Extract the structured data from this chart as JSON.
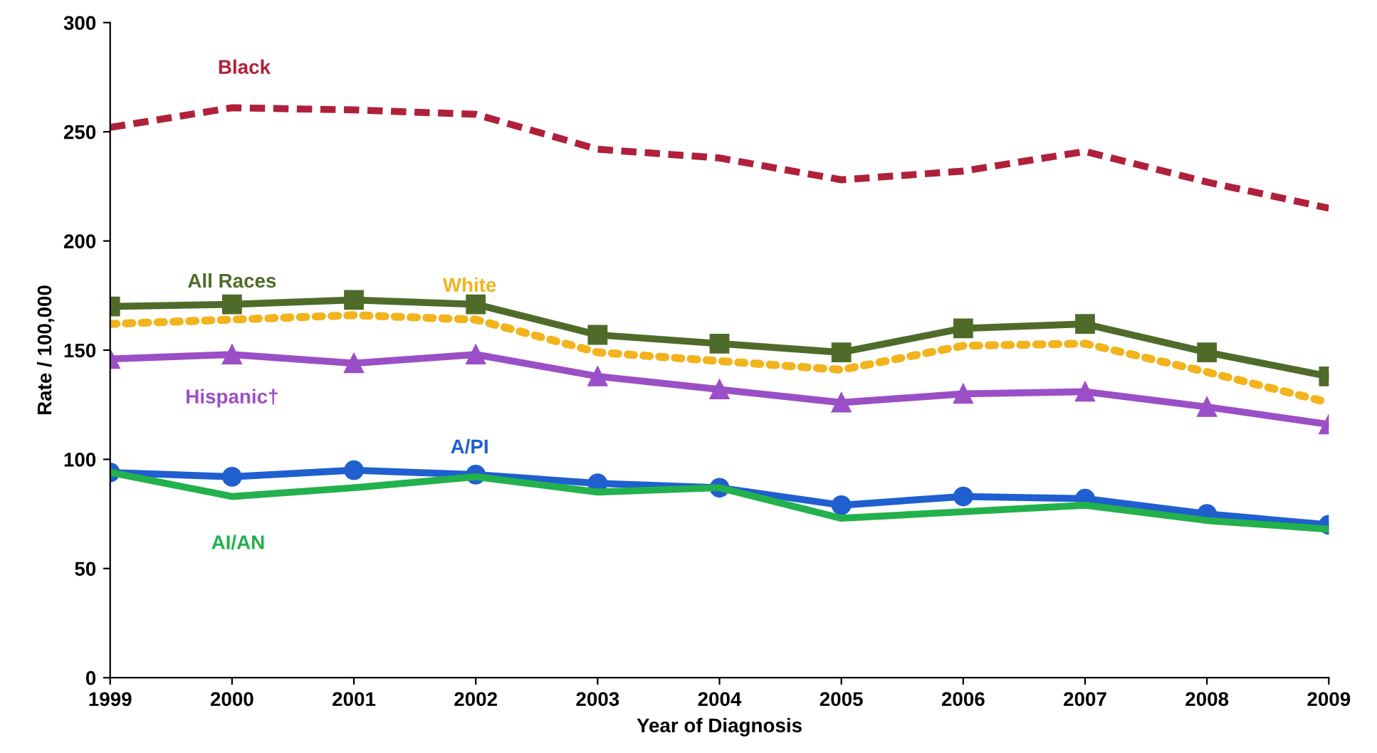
{
  "chart_data": {
    "type": "line",
    "xlabel": "Year of Diagnosis",
    "ylabel": "Rate / 100,000",
    "categories": [
      "1999",
      "2000",
      "2001",
      "2002",
      "2003",
      "2004",
      "2005",
      "2006",
      "2007",
      "2008",
      "2009"
    ],
    "ylim": [
      0,
      300
    ],
    "yticks": [
      0,
      50,
      100,
      150,
      200,
      250,
      300
    ],
    "grid": false,
    "legend": false,
    "series": [
      {
        "name": "Black",
        "color": "#b0203a",
        "line_style": "dashed",
        "marker": "none",
        "values": [
          252,
          261,
          260,
          258,
          242,
          238,
          228,
          232,
          241,
          227,
          215
        ]
      },
      {
        "name": "All Races",
        "color": "#4f6b2a",
        "line_style": "solid",
        "marker": "square",
        "values": [
          170,
          171,
          173,
          171,
          157,
          153,
          149,
          160,
          162,
          149,
          138
        ]
      },
      {
        "name": "White",
        "color": "#f2b31c",
        "line_style": "dotted",
        "marker": "none",
        "values": [
          162,
          164,
          166,
          164,
          149,
          145,
          141,
          152,
          153,
          140,
          126
        ]
      },
      {
        "name": "Hispanic†",
        "color": "#9b4fc6",
        "line_style": "solid",
        "marker": "triangle",
        "values": [
          146,
          148,
          144,
          148,
          138,
          132,
          126,
          130,
          131,
          124,
          116
        ]
      },
      {
        "name": "A/PI",
        "color": "#1f5fcf",
        "line_style": "solid",
        "marker": "circle",
        "values": [
          94,
          92,
          95,
          93,
          89,
          87,
          79,
          83,
          82,
          75,
          70
        ]
      },
      {
        "name": "AI/AN",
        "color": "#22b14c",
        "line_style": "solid",
        "marker": "none",
        "values": [
          94,
          83,
          87,
          92,
          85,
          87,
          73,
          76,
          79,
          72,
          68
        ]
      }
    ]
  }
}
